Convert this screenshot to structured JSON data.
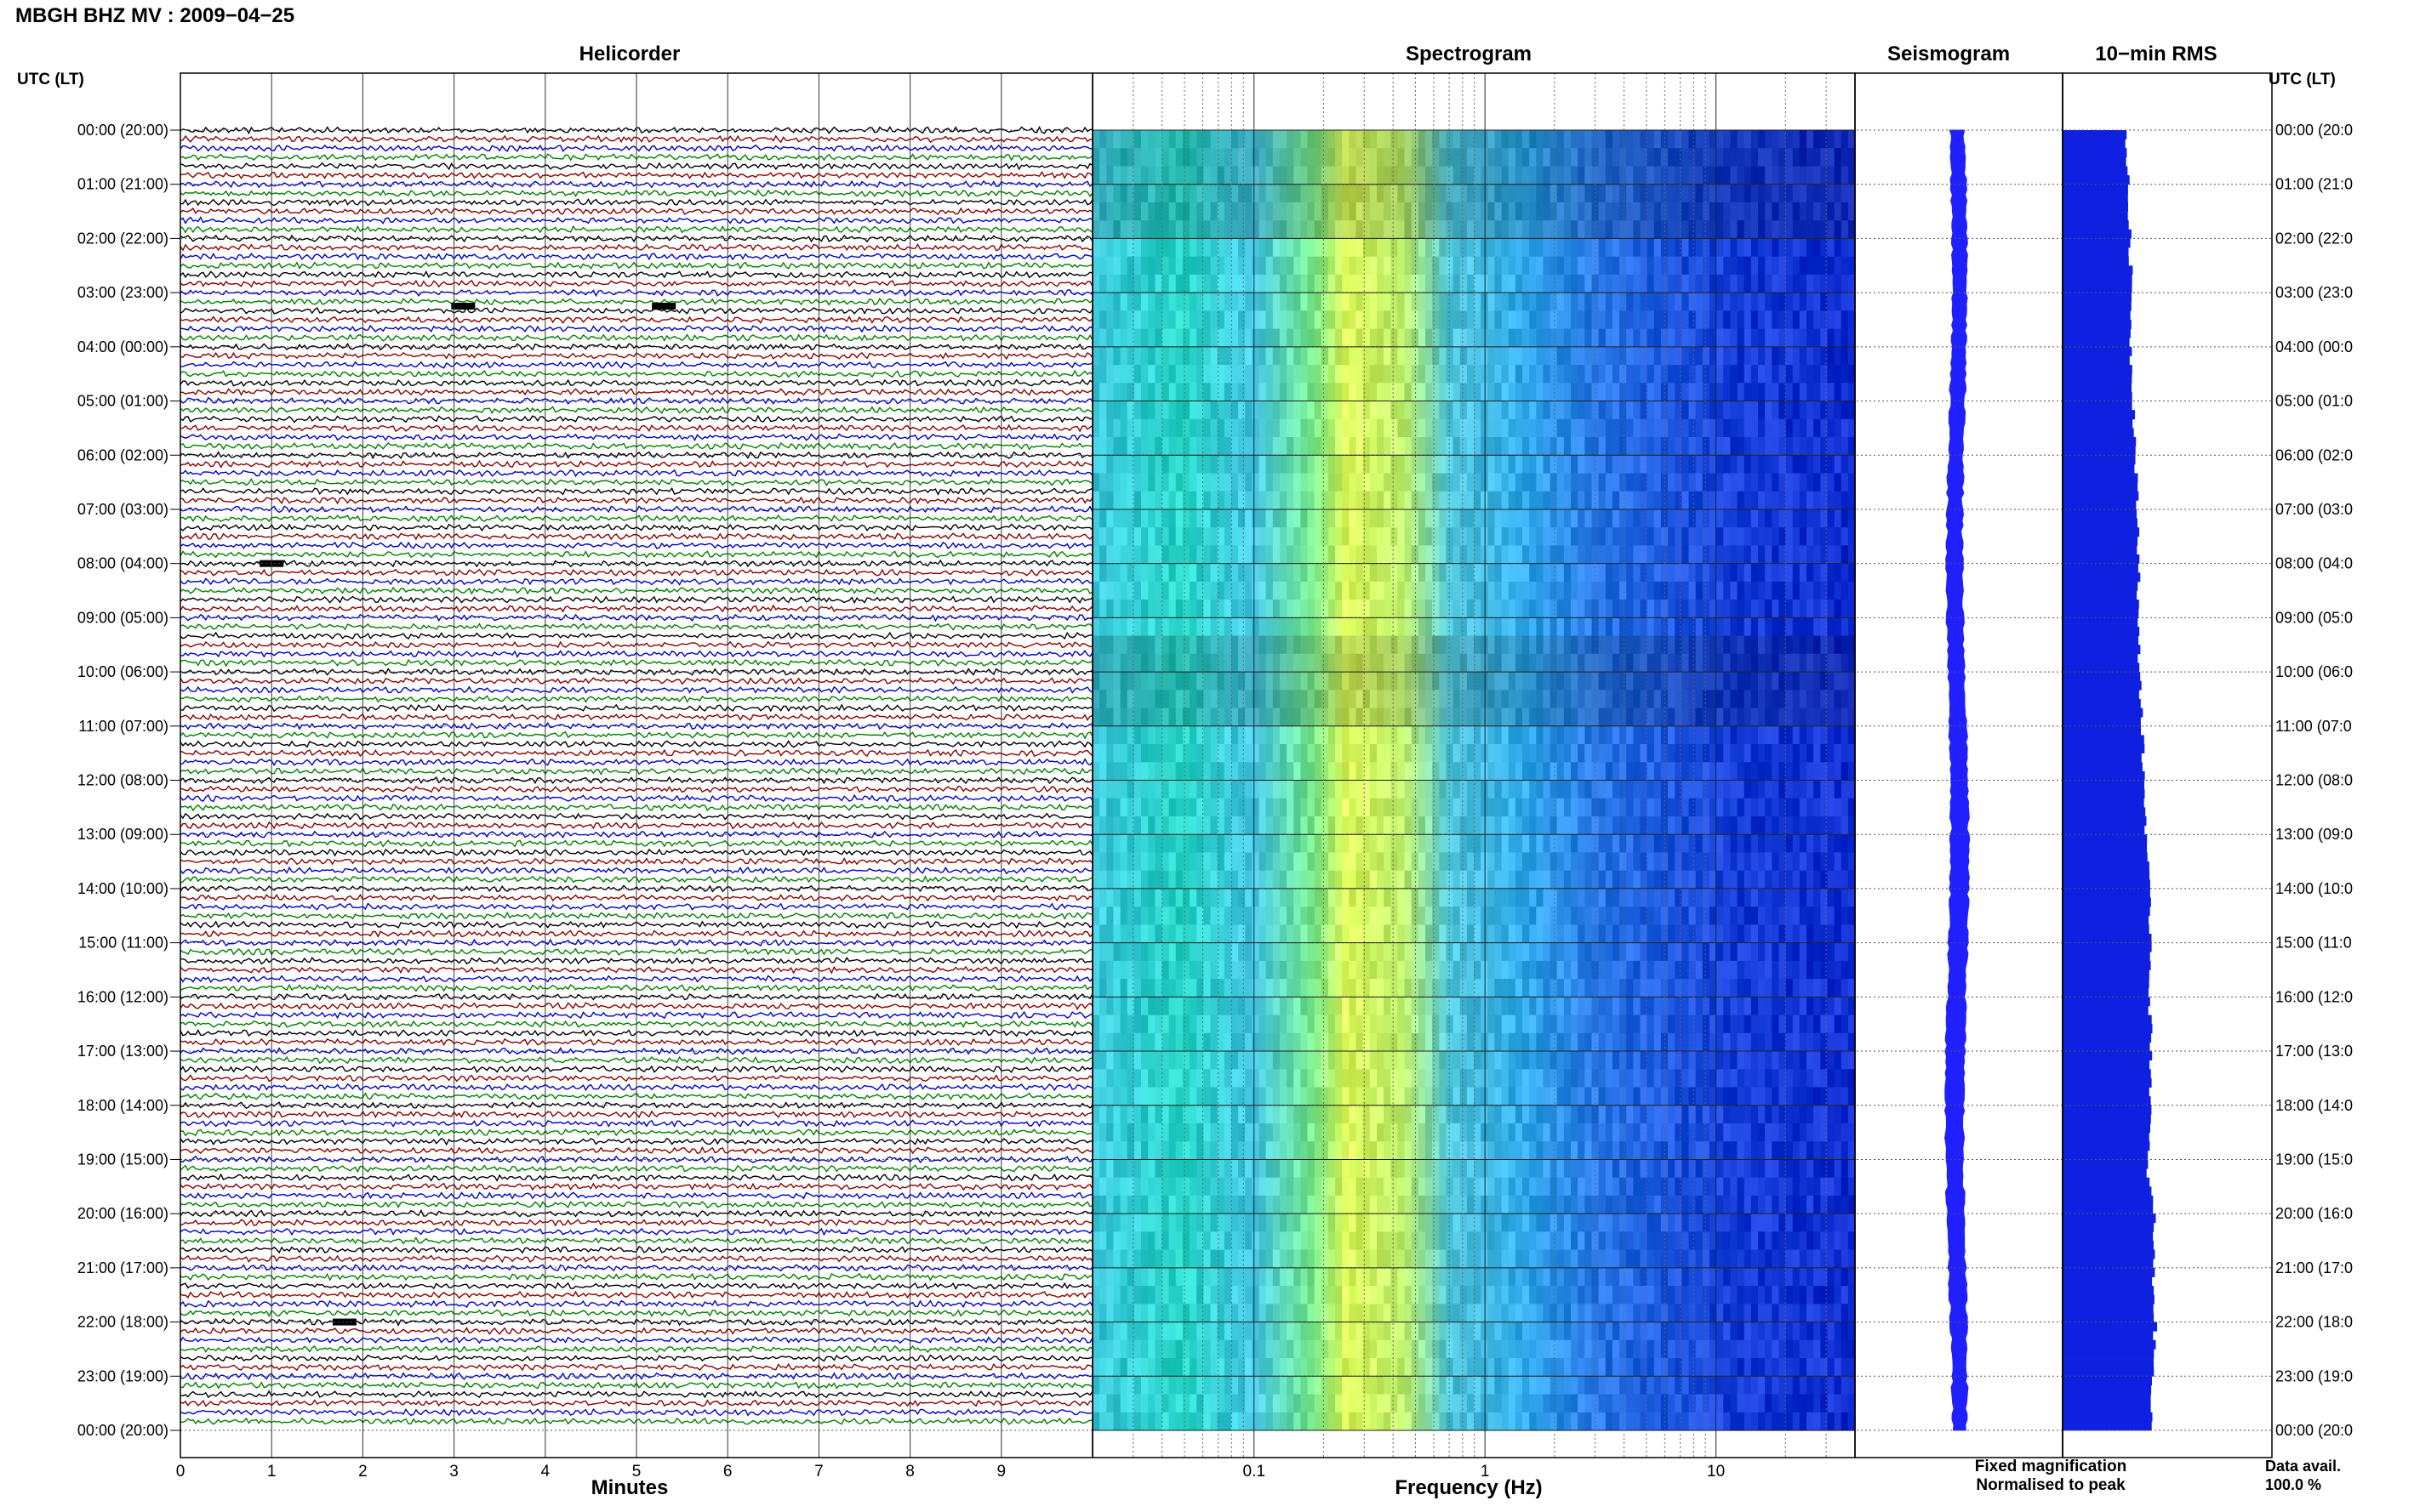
{
  "chart_data": {
    "type": "helicorder",
    "title": "MBGH BHZ MV : 2009−04−25",
    "panels": {
      "helicorder": {
        "title": "Helicorder",
        "xlabel": "Minutes",
        "x_ticks": [
          "0",
          "1",
          "2",
          "3",
          "4",
          "5",
          "6",
          "7",
          "8",
          "9"
        ],
        "xlim": [
          0,
          10
        ],
        "lines_per_hour": 6,
        "line_colors": [
          "#000000",
          "#8b0000",
          "#0000cc",
          "#008000"
        ],
        "events": [
          {
            "hour": 3.25,
            "minute": 3.1
          },
          {
            "hour": 3.25,
            "minute": 5.3
          },
          {
            "hour": 22.0,
            "minute": 1.8
          },
          {
            "hour": 8.0,
            "minute": 1.0
          }
        ]
      },
      "spectrogram": {
        "title": "Spectrogram",
        "xlabel": "Frequency (Hz)",
        "x_scale": "log",
        "x_tick_labels": [
          "0.1",
          "1",
          "10"
        ],
        "xlim": [
          0.02,
          40
        ],
        "colors": [
          "#2bd9c0",
          "#dfff4a",
          "#27a8e8",
          "#1560e6",
          "#1030d0"
        ]
      },
      "seismogram": {
        "title": "Seismogram",
        "color": "#2020ff",
        "relative_amplitude_by_hour": [
          0.55,
          0.55,
          0.55,
          0.55,
          0.55,
          0.58,
          0.6,
          0.6,
          0.62,
          0.65,
          0.65,
          0.68,
          0.7,
          0.72,
          0.75,
          0.75,
          0.75,
          0.78,
          0.75,
          0.72,
          0.7,
          0.68,
          0.65,
          0.6,
          0.55
        ]
      },
      "rms": {
        "title": "10−min RMS",
        "color": "#1020e0",
        "values_by_hour": [
          0.68,
          0.7,
          0.72,
          0.74,
          0.73,
          0.76,
          0.78,
          0.8,
          0.82,
          0.8,
          0.83,
          0.85,
          0.87,
          0.9,
          0.92,
          0.95,
          0.93,
          0.95,
          0.94,
          0.9,
          0.98,
          0.97,
          0.99,
          0.96,
          0.96
        ]
      }
    },
    "y_axis": {
      "label": "UTC (LT)",
      "hour_labels": [
        "00:00 (20:00)",
        "01:00 (21:00)",
        "02:00 (22:00)",
        "03:00 (23:00)",
        "04:00 (00:00)",
        "05:00 (01:00)",
        "06:00 (02:00)",
        "07:00 (03:00)",
        "08:00 (04:00)",
        "09:00 (05:00)",
        "10:00 (06:00)",
        "11:00 (07:00)",
        "12:00 (08:00)",
        "13:00 (09:00)",
        "14:00 (10:00)",
        "15:00 (11:00)",
        "16:00 (12:00)",
        "17:00 (13:00)",
        "18:00 (14:00)",
        "19:00 (15:00)",
        "20:00 (16:00)",
        "21:00 (17:00)",
        "22:00 (18:00)",
        "23:00 (19:00)",
        "00:00 (20:00)"
      ],
      "right_hour_labels": [
        "00:00 (20:0",
        "01:00 (21:0",
        "02:00 (22:0",
        "03:00 (23:0",
        "04:00 (00:0",
        "05:00 (01:0",
        "06:00 (02:0",
        "07:00 (03:0",
        "08:00 (04:0",
        "09:00 (05:0",
        "10:00 (06:0",
        "11:00 (07:0",
        "12:00 (08:0",
        "13:00 (09:0",
        "14:00 (10:0",
        "15:00 (11:0",
        "16:00 (12:0",
        "17:00 (13:0",
        "18:00 (14:0",
        "19:00 (15:0",
        "20:00 (16:0",
        "21:00 (17:0",
        "22:00 (18:0",
        "23:00 (19:0",
        "00:00 (20:0"
      ]
    },
    "legend": {
      "fixed": {
        "text": "Fixed magnification",
        "color": "#0000ff"
      },
      "normalised": {
        "text": "Normalised to peak",
        "color": "#ff0000"
      }
    },
    "data_availability": {
      "label": "Data avail.",
      "value": "100.0 %"
    }
  }
}
